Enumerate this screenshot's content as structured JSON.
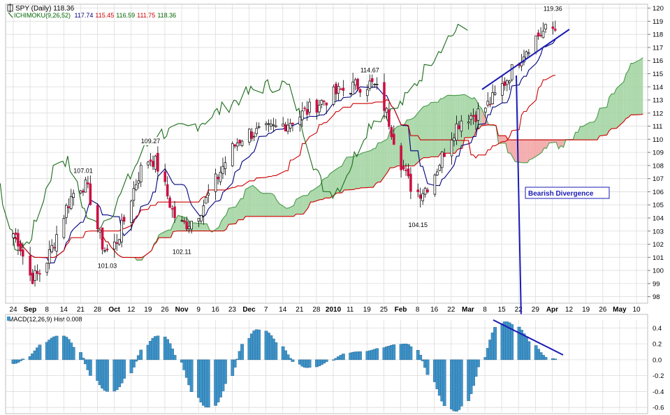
{
  "header": {
    "symbol_label": "SPY (Daily)",
    "last_price": "118.36",
    "ichimoku_label": "ICHIMOKU(9,26,52)",
    "ichimoku_values": [
      "117.74",
      "115.45",
      "116.59",
      "111.75",
      "118.36"
    ],
    "ichimoku_colors": [
      "#000080",
      "#cc0000",
      "#006400",
      "#cc0000",
      "#006400"
    ],
    "macd_label": "MACD(12,26,9) Hist 0.008"
  },
  "annotation": {
    "text": "Bearish Divergence"
  },
  "colors": {
    "tenkan": "#000080",
    "kijun": "#cc0000",
    "chikou": "#1a6b1a",
    "bull_cloud": "#9fd29f",
    "bear_cloud": "#f2a0a0",
    "up_candle": "#ffffff",
    "down_candle": "#cc1144",
    "candle_outline": "#000000",
    "macd_hist": "#3f93c8",
    "trendline": "#1a1ab4",
    "grid": "#dcdcdc"
  },
  "chart_data": [
    {
      "type": "candlestick",
      "title": "SPY (Daily)",
      "ylim": [
        97.5,
        120.3
      ],
      "y_ticks": [
        98,
        99,
        100,
        101,
        102,
        103,
        104,
        105,
        106,
        107,
        108,
        109,
        110,
        111,
        112,
        113,
        114,
        115,
        116,
        117,
        118,
        119,
        120
      ],
      "x_tick_labels": [
        "24",
        "Sep",
        "8",
        "14",
        "21",
        "28",
        "Oct",
        "12",
        "19",
        "26",
        "Nov",
        "9",
        "16",
        "23",
        "Dec",
        "7",
        "14",
        "21",
        "28",
        "2010",
        "11",
        "19",
        "25",
        "Feb",
        "8",
        "16",
        "22",
        "Mar",
        "8",
        "15",
        "22",
        "29",
        "Apr",
        "12",
        "19",
        "26",
        "May",
        "10"
      ],
      "price_annotations": [
        {
          "date": "2009-09-22",
          "value": 107.01,
          "label": "107.01"
        },
        {
          "date": "2009-10-02",
          "value": 101.03,
          "label": "101.03"
        },
        {
          "date": "2009-10-20",
          "value": 109.27,
          "label": "109.27"
        },
        {
          "date": "2009-11-02",
          "value": 102.11,
          "label": "102.11"
        },
        {
          "date": "2010-01-19",
          "value": 114.67,
          "label": "114.67"
        },
        {
          "date": "2010-02-08",
          "value": 104.15,
          "label": "104.15"
        },
        {
          "date": "2010-04-05",
          "value": 119.36,
          "label": "119.36"
        }
      ],
      "ichimoku": {
        "params": [
          9,
          26,
          52
        ],
        "latest_values": [
          117.74,
          115.45,
          116.59,
          111.75,
          118.36
        ]
      },
      "series_close_approx": [
        {
          "date": "2009-08-24",
          "close": 102.8
        },
        {
          "date": "2009-09-01",
          "close": 99.5
        },
        {
          "date": "2009-09-22",
          "close": 106.5
        },
        {
          "date": "2009-10-02",
          "close": 101.5
        },
        {
          "date": "2009-10-20",
          "close": 108.5
        },
        {
          "date": "2009-11-02",
          "close": 103.5
        },
        {
          "date": "2009-12-01",
          "close": 110.5
        },
        {
          "date": "2010-01-19",
          "close": 114.2
        },
        {
          "date": "2010-02-08",
          "close": 106.0
        },
        {
          "date": "2010-03-01",
          "close": 111.8
        },
        {
          "date": "2010-04-05",
          "close": 118.4
        }
      ]
    },
    {
      "type": "bar",
      "title": "MACD(12,26,9) Hist",
      "latest_value": 0.008,
      "ylim": [
        -0.66,
        0.5
      ],
      "y_ticks": [
        0.4,
        0.2,
        0.0,
        -0.2,
        -0.4,
        -0.6
      ],
      "y_tick_labels": [
        "0.4",
        "0.2",
        "0.0",
        "-0.2",
        "-0.4",
        "-0.6"
      ],
      "values_approx_by_period": [
        {
          "period": "late Aug",
          "value": -0.05
        },
        {
          "period": "mid Sep",
          "value": 0.3
        },
        {
          "period": "early Oct",
          "value": -0.4
        },
        {
          "period": "mid Oct",
          "value": 0.3
        },
        {
          "period": "early Nov",
          "value": -0.6
        },
        {
          "period": "mid Nov",
          "value": 0.38
        },
        {
          "period": "early Dec",
          "value": -0.1
        },
        {
          "period": "mid Dec",
          "value": 0.1
        },
        {
          "period": "mid Jan",
          "value": 0.2
        },
        {
          "period": "early Feb",
          "value": -0.65
        },
        {
          "period": "mid Mar",
          "value": 0.48
        },
        {
          "period": "early Apr",
          "value": 0.01
        }
      ]
    }
  ]
}
